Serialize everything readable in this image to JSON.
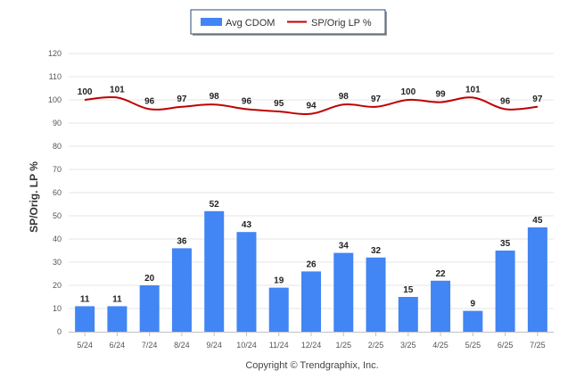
{
  "chart_data": {
    "type": "bar",
    "categories": [
      "5/24",
      "6/24",
      "7/24",
      "8/24",
      "9/24",
      "10/24",
      "11/24",
      "12/24",
      "1/25",
      "2/25",
      "3/25",
      "4/25",
      "5/25",
      "6/25",
      "7/25"
    ],
    "series": [
      {
        "name": "Avg CDOM",
        "type": "bar",
        "color": "#4285f4",
        "values": [
          11,
          11,
          20,
          36,
          52,
          43,
          19,
          26,
          34,
          32,
          15,
          22,
          9,
          35,
          45
        ]
      },
      {
        "name": "SP/Orig LP %",
        "type": "line",
        "color": "#c00000",
        "values": [
          100,
          101,
          96,
          97,
          98,
          96,
          95,
          94,
          98,
          97,
          100,
          99,
          101,
          96,
          97
        ]
      }
    ],
    "ylabel": "SP/Orig. LP %",
    "xlabel": "",
    "ylim": [
      0,
      120
    ],
    "yticks": [
      0,
      10,
      20,
      30,
      40,
      50,
      60,
      70,
      80,
      90,
      100,
      110,
      120
    ],
    "grid": true,
    "legend_position": "top-center"
  },
  "footer": {
    "copyright": "Copyright © Trendgraphix, Inc."
  }
}
